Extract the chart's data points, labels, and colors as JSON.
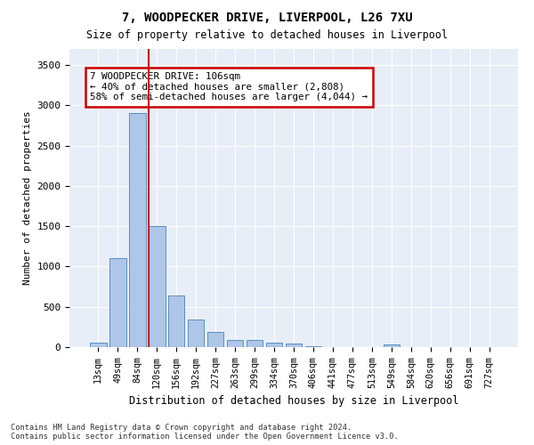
{
  "title1": "7, WOODPECKER DRIVE, LIVERPOOL, L26 7XU",
  "title2": "Size of property relative to detached houses in Liverpool",
  "xlabel": "Distribution of detached houses by size in Liverpool",
  "ylabel": "Number of detached properties",
  "bar_labels": [
    "13sqm",
    "49sqm",
    "84sqm",
    "120sqm",
    "156sqm",
    "192sqm",
    "227sqm",
    "263sqm",
    "299sqm",
    "334sqm",
    "370sqm",
    "406sqm",
    "441sqm",
    "477sqm",
    "513sqm",
    "549sqm",
    "584sqm",
    "620sqm",
    "656sqm",
    "691sqm",
    "727sqm"
  ],
  "bar_values": [
    50,
    1100,
    2900,
    1500,
    640,
    340,
    185,
    90,
    90,
    60,
    40,
    15,
    0,
    0,
    0,
    30,
    0,
    0,
    0,
    0,
    0
  ],
  "bar_color": "#aec6e8",
  "bar_edgecolor": "#5a8fc0",
  "annotation_line1": "7 WOODPECKER DRIVE: 106sqm",
  "annotation_line2": "← 40% of detached houses are smaller (2,808)",
  "annotation_line3": "58% of semi-detached houses are larger (4,044) →",
  "annotation_box_color": "#cc0000",
  "vline_color": "#cc0000",
  "vline_x_index": 3,
  "ylim": [
    0,
    3700
  ],
  "yticks": [
    0,
    500,
    1000,
    1500,
    2000,
    2500,
    3000,
    3500
  ],
  "background_color": "#e8eef8",
  "grid_color": "#ffffff",
  "footnote_line1": "Contains HM Land Registry data © Crown copyright and database right 2024.",
  "footnote_line2": "Contains public sector information licensed under the Open Government Licence v3.0."
}
